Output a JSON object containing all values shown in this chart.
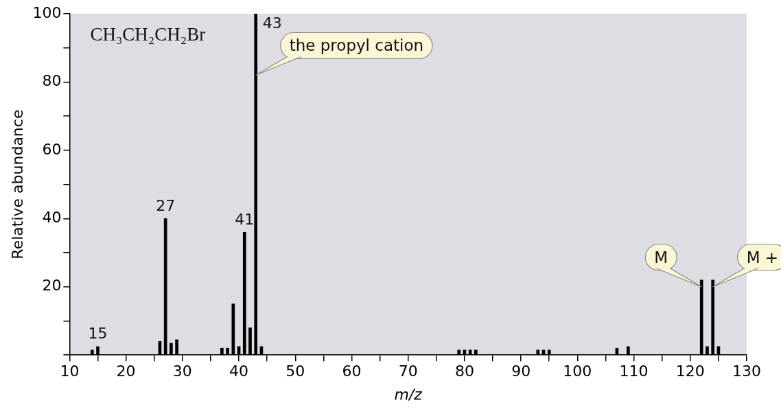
{
  "chart_data": {
    "type": "bar",
    "xlabel": "m/z",
    "ylabel": "Relative abundance",
    "x": [
      14,
      15,
      26,
      27,
      28,
      29,
      37,
      38,
      39,
      40,
      41,
      42,
      43,
      44,
      79,
      80,
      81,
      82,
      93,
      94,
      95,
      107,
      109,
      122,
      123,
      124,
      125
    ],
    "values": [
      1.5,
      2.5,
      4,
      40,
      3.5,
      4.5,
      2,
      2,
      15,
      2.5,
      36,
      8,
      100,
      2.5,
      1.5,
      1.5,
      1.5,
      1.5,
      1.5,
      1.5,
      1.5,
      2,
      2.5,
      22,
      2.5,
      22,
      2.5
    ],
    "color": "#000000",
    "xlim": [
      10,
      130
    ],
    "xticks": [
      10,
      {
        "value": 15,
        "label": null
      },
      20,
      {
        "value": 25,
        "label": null
      },
      30,
      {
        "value": 35,
        "label": null
      },
      40,
      {
        "value": 45,
        "label": null
      },
      50,
      {
        "value": 55,
        "label": null
      },
      60,
      {
        "value": 65,
        "label": null
      },
      70,
      {
        "value": 75,
        "label": null
      },
      80,
      {
        "value": 85,
        "label": null
      },
      90,
      {
        "value": 95,
        "label": null
      },
      100,
      {
        "value": 105,
        "label": null
      },
      110,
      {
        "value": 115,
        "label": null
      },
      120,
      {
        "value": 125,
        "label": null
      },
      130
    ],
    "ylim": [
      0,
      100
    ],
    "yticks": [
      {
        "value": 0,
        "label": null
      },
      {
        "value": 10,
        "label": null
      },
      20,
      {
        "value": 30,
        "label": null
      },
      40,
      {
        "value": 50,
        "label": null
      },
      60,
      {
        "value": 70,
        "label": null
      },
      80,
      {
        "value": 90,
        "label": null
      },
      100
    ],
    "annotations": [
      "CH₃CH₂CH₂Br",
      {
        "text": "15",
        "x": 15,
        "y": 2.5
      },
      {
        "text": "27",
        "x": 27,
        "y": 40
      },
      {
        "text": "41",
        "x": 41,
        "y": 36
      },
      {
        "text": "43",
        "x": 43,
        "y": 100
      },
      {
        "text": "the propyl cation",
        "x": 43,
        "y": 82
      },
      {
        "text": "M",
        "x": 122,
        "y": 20
      },
      {
        "text": "M +",
        "x": 124,
        "y": 20
      }
    ]
  }
}
